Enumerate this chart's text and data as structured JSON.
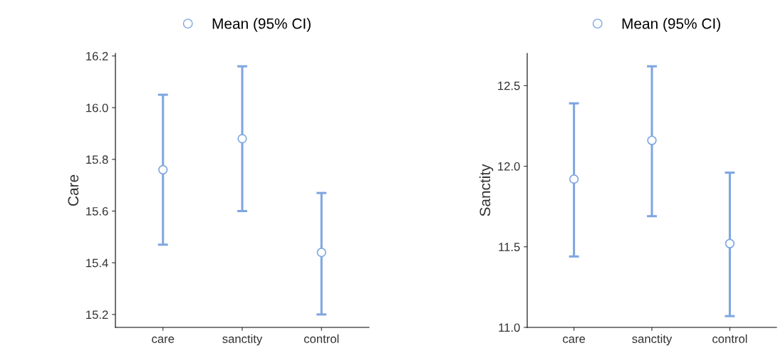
{
  "chart_data": [
    {
      "type": "scatter",
      "ylabel": "Care",
      "categories": [
        "care",
        "sanctity",
        "control"
      ],
      "ylim": [
        15.15,
        16.21
      ],
      "yticks": [
        {
          "value": 15.2,
          "label": "15.2"
        },
        {
          "value": 15.4,
          "label": "15.4"
        },
        {
          "value": 15.6,
          "label": "15.6"
        },
        {
          "value": 15.8,
          "label": "15.8"
        },
        {
          "value": 16.0,
          "label": "16.0"
        },
        {
          "value": 16.2,
          "label": "16.2"
        }
      ],
      "marker": "circle",
      "legend": "top",
      "grid": false,
      "series": [
        {
          "name": "Mean (95% CI)",
          "color": "#7ea6e0",
          "values": [
            15.76,
            15.88,
            15.44
          ],
          "errors": [
            [
              15.47,
              16.05
            ],
            [
              15.6,
              16.16
            ],
            [
              15.2,
              15.67
            ]
          ]
        }
      ]
    },
    {
      "type": "scatter",
      "ylabel": "Sanctity",
      "categories": [
        "care",
        "sanctity",
        "control"
      ],
      "ylim": [
        11.0,
        12.7
      ],
      "yticks": [
        {
          "value": 11.0,
          "label": "11.0"
        },
        {
          "value": 11.5,
          "label": "11.5"
        },
        {
          "value": 12.0,
          "label": "12.0"
        },
        {
          "value": 12.5,
          "label": "12.5"
        }
      ],
      "marker": "circle",
      "legend": "top",
      "grid": false,
      "series": [
        {
          "name": "Mean (95% CI)",
          "color": "#7ea6e0",
          "values": [
            11.92,
            12.16,
            11.52
          ],
          "errors": [
            [
              11.44,
              12.39
            ],
            [
              11.69,
              12.62
            ],
            [
              11.07,
              11.96
            ]
          ]
        }
      ]
    }
  ]
}
